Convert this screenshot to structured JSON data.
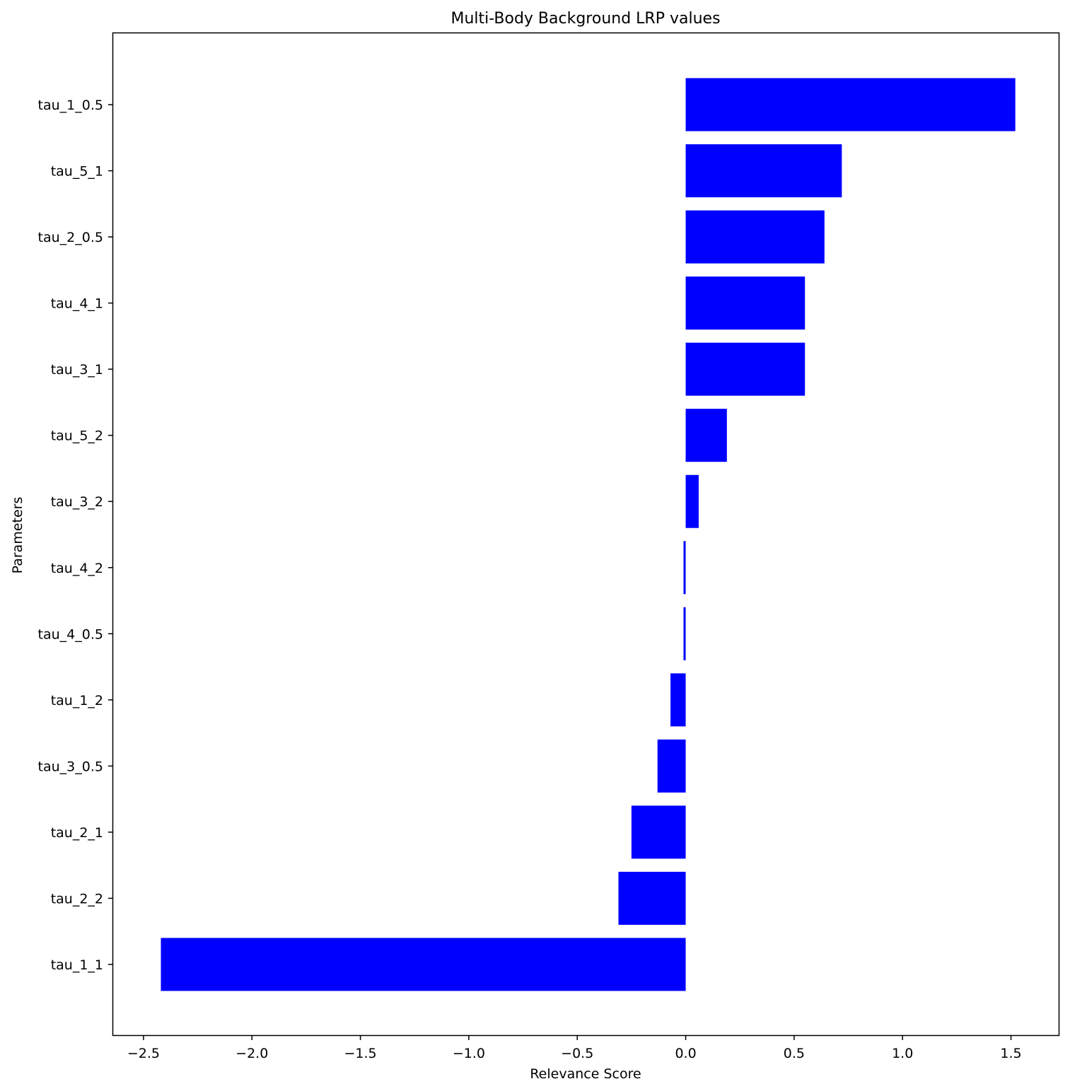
{
  "chart_data": {
    "type": "bar",
    "orientation": "horizontal",
    "title": "Multi-Body Background LRP values",
    "xlabel": "Relevance Score",
    "ylabel": "Parameters",
    "xlim": [
      -2.64,
      1.72
    ],
    "xticks": [
      -2.5,
      -2.0,
      -1.5,
      -1.0,
      -0.5,
      0.0,
      0.5,
      1.0,
      1.5
    ],
    "xtick_labels": [
      "−2.5",
      "−2.0",
      "−1.5",
      "−1.0",
      "−0.5",
      "0.0",
      "0.5",
      "1.0",
      "1.5"
    ],
    "categories": [
      "tau_1_0.5",
      "tau_5_1",
      "tau_2_0.5",
      "tau_4_1",
      "tau_3_1",
      "tau_5_2",
      "tau_3_2",
      "tau_4_2",
      "tau_4_0.5",
      "tau_1_2",
      "tau_3_0.5",
      "tau_2_1",
      "tau_2_2",
      "tau_1_1"
    ],
    "values": [
      1.52,
      0.72,
      0.64,
      0.55,
      0.55,
      0.19,
      0.06,
      -0.01,
      -0.01,
      -0.07,
      -0.13,
      -0.25,
      -0.31,
      -2.42
    ],
    "bar_color": "#0000ff",
    "grid": false,
    "legend": null
  }
}
